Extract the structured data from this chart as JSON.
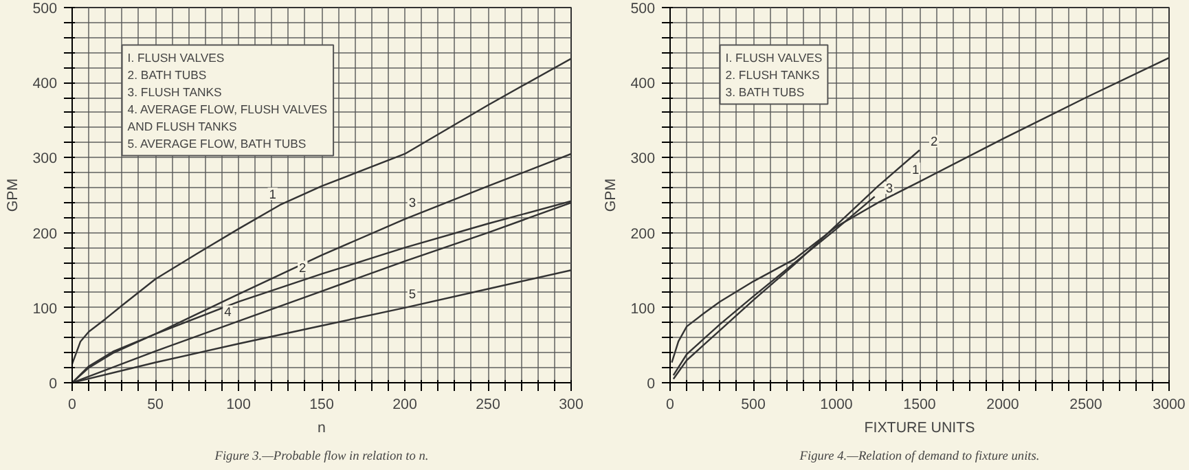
{
  "chart_data": [
    {
      "type": "line",
      "xlabel": "n",
      "ylabel": "GPM",
      "grid": true,
      "xlim": [
        0,
        300
      ],
      "ylim": [
        0,
        500
      ],
      "xticks": [
        0,
        {
          "value": 10,
          "label": null
        },
        {
          "value": 20,
          "label": null
        },
        {
          "value": 30,
          "label": null
        },
        {
          "value": 40,
          "label": null
        },
        50,
        {
          "value": 60,
          "label": null
        },
        {
          "value": 70,
          "label": null
        },
        {
          "value": 80,
          "label": null
        },
        {
          "value": 90,
          "label": null
        },
        100,
        {
          "value": 110,
          "label": null
        },
        {
          "value": 120,
          "label": null
        },
        {
          "value": 130,
          "label": null
        },
        {
          "value": 140,
          "label": null
        },
        150,
        {
          "value": 160,
          "label": null
        },
        {
          "value": 170,
          "label": null
        },
        {
          "value": 180,
          "label": null
        },
        {
          "value": 190,
          "label": null
        },
        200,
        {
          "value": 210,
          "label": null
        },
        {
          "value": 220,
          "label": null
        },
        {
          "value": 230,
          "label": null
        },
        {
          "value": 240,
          "label": null
        },
        250,
        {
          "value": 260,
          "label": null
        },
        {
          "value": 270,
          "label": null
        },
        {
          "value": 280,
          "label": null
        },
        {
          "value": 290,
          "label": null
        },
        300
      ],
      "yticks": [
        0,
        {
          "value": 20,
          "label": null
        },
        {
          "value": 40,
          "label": null
        },
        {
          "value": 60,
          "label": null
        },
        {
          "value": 80,
          "label": null
        },
        100,
        {
          "value": 120,
          "label": null
        },
        {
          "value": 140,
          "label": null
        },
        {
          "value": 160,
          "label": null
        },
        {
          "value": 180,
          "label": null
        },
        200,
        {
          "value": 220,
          "label": null
        },
        {
          "value": 240,
          "label": null
        },
        {
          "value": 260,
          "label": null
        },
        {
          "value": 280,
          "label": null
        },
        300,
        {
          "value": 320,
          "label": null
        },
        {
          "value": 340,
          "label": null
        },
        {
          "value": 360,
          "label": null
        },
        {
          "value": 380,
          "label": null
        },
        400,
        {
          "value": 420,
          "label": null
        },
        {
          "value": 440,
          "label": null
        },
        {
          "value": 460,
          "label": null
        },
        {
          "value": 480,
          "label": null
        },
        500
      ],
      "series": [
        {
          "name": "1",
          "color": "#333333",
          "x": [
            0,
            5,
            10,
            20,
            30,
            50,
            75,
            100,
            125,
            150,
            200,
            250,
            300
          ],
          "values": [
            25,
            55,
            68,
            85,
            103,
            138,
            172,
            205,
            237,
            262,
            305,
            370,
            432
          ]
        },
        {
          "name": "2",
          "color": "#333333",
          "x": [
            0,
            10,
            25,
            50,
            100,
            150,
            200,
            250,
            300
          ],
          "values": [
            0,
            22,
            42,
            65,
            108,
            145,
            180,
            212,
            242
          ]
        },
        {
          "name": "3",
          "color": "#333333",
          "x": [
            0,
            10,
            25,
            50,
            100,
            150,
            200,
            250,
            300
          ],
          "values": [
            0,
            20,
            40,
            65,
            118,
            170,
            218,
            262,
            305
          ]
        },
        {
          "name": "4",
          "color": "#333333",
          "x": [
            0,
            50,
            100,
            150,
            200,
            250,
            300
          ],
          "values": [
            0,
            42,
            82,
            122,
            162,
            200,
            240
          ]
        },
        {
          "name": "5",
          "color": "#333333",
          "x": [
            0,
            50,
            100,
            150,
            200,
            250,
            300
          ],
          "values": [
            0,
            27,
            52,
            76,
            100,
            125,
            150
          ]
        }
      ],
      "annotations": [
        "I. FLUSH VALVES",
        "2. BATH TUBS",
        "3. FLUSH TANKS",
        "4. AVERAGE FLOW, FLUSH VALVES\n   AND FLUSH TANKS",
        "5. AVERAGE FLOW, BATH TUBS",
        "Figure 3.—Probable flow in relation to n."
      ]
    },
    {
      "type": "line",
      "xlabel": "FIXTURE UNITS",
      "ylabel": "GPM",
      "grid": true,
      "xlim": [
        0,
        3000
      ],
      "ylim": [
        0,
        500
      ],
      "xticks": [
        0,
        {
          "value": 100,
          "label": null
        },
        {
          "value": 200,
          "label": null
        },
        {
          "value": 300,
          "label": null
        },
        {
          "value": 400,
          "label": null
        },
        500,
        {
          "value": 600,
          "label": null
        },
        {
          "value": 700,
          "label": null
        },
        {
          "value": 800,
          "label": null
        },
        {
          "value": 900,
          "label": null
        },
        1000,
        {
          "value": 1100,
          "label": null
        },
        {
          "value": 1200,
          "label": null
        },
        {
          "value": 1300,
          "label": null
        },
        {
          "value": 1400,
          "label": null
        },
        1500,
        {
          "value": 1600,
          "label": null
        },
        {
          "value": 1700,
          "label": null
        },
        {
          "value": 1800,
          "label": null
        },
        {
          "value": 1900,
          "label": null
        },
        2000,
        {
          "value": 2100,
          "label": null
        },
        {
          "value": 2200,
          "label": null
        },
        {
          "value": 2300,
          "label": null
        },
        {
          "value": 2400,
          "label": null
        },
        2500,
        {
          "value": 2600,
          "label": null
        },
        {
          "value": 2700,
          "label": null
        },
        {
          "value": 2800,
          "label": null
        },
        {
          "value": 2900,
          "label": null
        },
        3000
      ],
      "yticks": [
        0,
        {
          "value": 20,
          "label": null
        },
        {
          "value": 40,
          "label": null
        },
        {
          "value": 60,
          "label": null
        },
        {
          "value": 80,
          "label": null
        },
        100,
        {
          "value": 120,
          "label": null
        },
        {
          "value": 140,
          "label": null
        },
        {
          "value": 160,
          "label": null
        },
        {
          "value": 180,
          "label": null
        },
        200,
        {
          "value": 220,
          "label": null
        },
        {
          "value": 240,
          "label": null
        },
        {
          "value": 260,
          "label": null
        },
        {
          "value": 280,
          "label": null
        },
        300,
        {
          "value": 320,
          "label": null
        },
        {
          "value": 340,
          "label": null
        },
        {
          "value": 360,
          "label": null
        },
        {
          "value": 380,
          "label": null
        },
        400,
        {
          "value": 420,
          "label": null
        },
        {
          "value": 440,
          "label": null
        },
        {
          "value": 460,
          "label": null
        },
        {
          "value": 480,
          "label": null
        },
        500
      ],
      "series": [
        {
          "name": "1",
          "color": "#333333",
          "x": [
            10,
            50,
            100,
            200,
            300,
            500,
            750,
            1000,
            1250,
            1500,
            2000,
            2500,
            3000
          ],
          "values": [
            27,
            55,
            75,
            92,
            108,
            135,
            165,
            208,
            240,
            268,
            325,
            380,
            433
          ]
        },
        {
          "name": "2",
          "color": "#333333",
          "x": [
            20,
            100,
            200,
            300,
            500,
            750,
            1000,
            1250,
            1500
          ],
          "values": [
            5,
            30,
            50,
            70,
            110,
            158,
            210,
            262,
            310
          ]
        },
        {
          "name": "3",
          "color": "#333333",
          "x": [
            20,
            100,
            200,
            300,
            500,
            750,
            1000,
            1230
          ],
          "values": [
            10,
            38,
            58,
            78,
            115,
            160,
            205,
            248
          ]
        }
      ],
      "annotations": [
        "I. FLUSH VALVES",
        "2. FLUSH TANKS",
        "3. BATH TUBS",
        "Figure 4.—Relation of demand to fixture units."
      ]
    }
  ]
}
